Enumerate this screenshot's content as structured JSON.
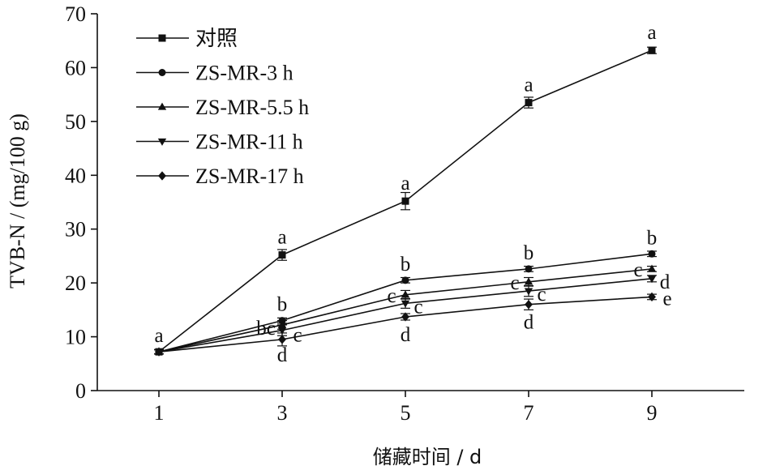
{
  "chart_data": {
    "type": "line",
    "title": "",
    "xlabel": "储藏时间 / d",
    "ylabel": "TVB-N / (mg/100 g)",
    "x": [
      1,
      3,
      5,
      7,
      9
    ],
    "xlim": [
      0,
      10.5
    ],
    "ylim": [
      0,
      70
    ],
    "xticks": [
      1,
      3,
      5,
      7,
      9
    ],
    "yticks": [
      0,
      10,
      20,
      30,
      40,
      50,
      60,
      70
    ],
    "grid": false,
    "legend_position": "top-left",
    "series": [
      {
        "name": "对照",
        "marker": "square",
        "values": [
          7.2,
          25.2,
          35.2,
          53.5,
          63.2
        ],
        "errors": [
          0.4,
          1.0,
          1.6,
          1.0,
          0.6
        ],
        "letters": [
          "a",
          "a",
          "a",
          "a",
          "a"
        ]
      },
      {
        "name": "ZS-MR-3 h",
        "marker": "circle",
        "values": [
          7.2,
          13.0,
          20.5,
          22.6,
          25.4
        ],
        "errors": [
          0.4,
          0.5,
          0.5,
          0.5,
          0.5
        ],
        "letters": [
          "a",
          "b",
          "b",
          "b",
          "b"
        ]
      },
      {
        "name": "ZS-MR-5.5 h",
        "marker": "triangle-up",
        "values": [
          7.2,
          12.2,
          17.8,
          20.2,
          22.6
        ],
        "errors": [
          0.4,
          0.8,
          0.8,
          0.8,
          0.5
        ],
        "letters": [
          "a",
          "bc",
          "c",
          "c",
          "c"
        ]
      },
      {
        "name": "ZS-MR-11 h",
        "marker": "triangle-down",
        "values": [
          7.2,
          11.2,
          16.2,
          18.5,
          20.8
        ],
        "errors": [
          0.4,
          1.0,
          0.9,
          1.0,
          0.6
        ],
        "letters": [
          "a",
          "c",
          "c",
          "c",
          "d"
        ]
      },
      {
        "name": "ZS-MR-17 h",
        "marker": "diamond",
        "values": [
          7.2,
          9.5,
          13.7,
          16.0,
          17.4
        ],
        "errors": [
          0.4,
          1.2,
          0.6,
          1.0,
          0.5
        ],
        "letters": [
          "a",
          "d",
          "d",
          "d",
          "e"
        ]
      }
    ]
  }
}
